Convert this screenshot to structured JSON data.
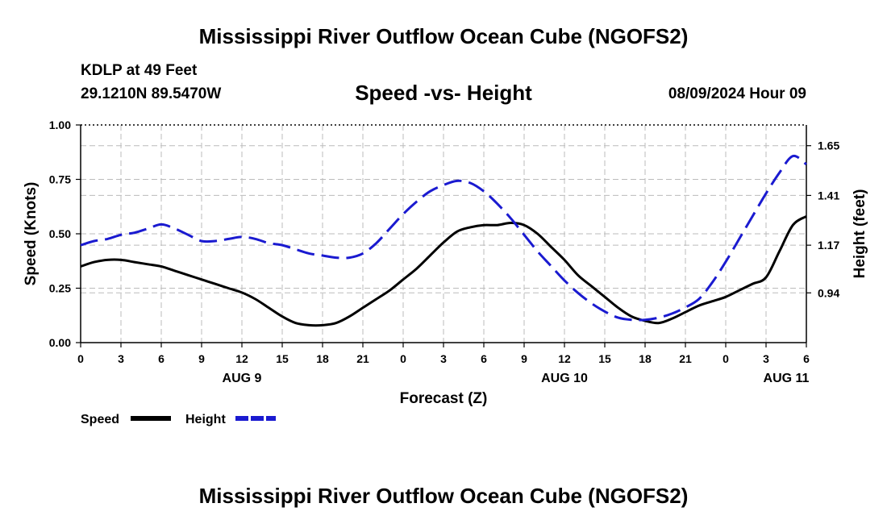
{
  "header": {
    "title": "Mississippi River Outflow Ocean Cube (NGOFS2)",
    "station_name": "KDLP at 49 Feet",
    "station_coords": "29.1210N  89.5470W",
    "chart_title": "Speed -vs- Height",
    "date": "08/09/2024 Hour 09"
  },
  "footer": {
    "title": "Mississippi River Outflow Ocean Cube (NGOFS2)"
  },
  "colors": {
    "speed": "#000000",
    "height": "#1a1ad0",
    "grid": "#bbbbbb"
  },
  "chart_data": {
    "type": "line",
    "title": "Speed -vs- Height",
    "xlabel": "Forecast (Z)",
    "ylabel": "Speed (Knots)",
    "ylabel_right": "Height (feet)",
    "xlim": [
      0,
      54
    ],
    "x_ticks": [
      0,
      3,
      6,
      9,
      12,
      15,
      18,
      21,
      24,
      27,
      30,
      33,
      36,
      39,
      42,
      45,
      48,
      51,
      54
    ],
    "x_tick_labels": [
      "0",
      "3",
      "6",
      "9",
      "12",
      "15",
      "18",
      "21",
      "0",
      "3",
      "6",
      "9",
      "12",
      "15",
      "18",
      "21",
      "0",
      "3",
      "6"
    ],
    "date_labels": [
      {
        "x": 12,
        "label": "AUG 9"
      },
      {
        "x": 36,
        "label": "AUG 10"
      },
      {
        "x": 52.5,
        "label": "AUG 11"
      }
    ],
    "ylim": [
      0,
      1
    ],
    "y_ticks": [
      0,
      0.25,
      0.5,
      0.75,
      1.0
    ],
    "y_tick_labels": [
      "0.00",
      "0.25",
      "0.50",
      "0.75",
      "1.00"
    ],
    "ylim_right": [
      0.7,
      1.75
    ],
    "y_ticks_right": [
      0.94,
      1.17,
      1.41,
      1.65
    ],
    "y_tick_labels_right": [
      "0.94",
      "1.17",
      "1.41",
      "1.65"
    ],
    "legend": [
      {
        "name": "Speed",
        "series": "speed"
      },
      {
        "name": "Height",
        "series": "height"
      }
    ],
    "series": [
      {
        "name": "Speed",
        "axis": "left",
        "style": "solid",
        "x": [
          0,
          1,
          2,
          3,
          4,
          5,
          6,
          7,
          8,
          9,
          10,
          11,
          12,
          13,
          14,
          15,
          16,
          17,
          18,
          19,
          20,
          21,
          22,
          23,
          24,
          25,
          26,
          27,
          28,
          29,
          30,
          31,
          32,
          33,
          34,
          35,
          36,
          37,
          38,
          39,
          40,
          41,
          42,
          43,
          44,
          45,
          46,
          47,
          48,
          49,
          50,
          51,
          52,
          53,
          54
        ],
        "values": [
          0.35,
          0.37,
          0.38,
          0.38,
          0.37,
          0.36,
          0.35,
          0.33,
          0.31,
          0.29,
          0.27,
          0.25,
          0.23,
          0.2,
          0.16,
          0.12,
          0.09,
          0.08,
          0.08,
          0.09,
          0.12,
          0.16,
          0.2,
          0.24,
          0.29,
          0.34,
          0.4,
          0.46,
          0.51,
          0.53,
          0.54,
          0.54,
          0.55,
          0.54,
          0.5,
          0.44,
          0.38,
          0.31,
          0.26,
          0.21,
          0.16,
          0.12,
          0.1,
          0.09,
          0.11,
          0.14,
          0.17,
          0.19,
          0.21,
          0.24,
          0.27,
          0.3,
          0.42,
          0.54,
          0.58
        ]
      },
      {
        "name": "Height",
        "axis": "right",
        "style": "dashed",
        "x": [
          0,
          1,
          2,
          3,
          4,
          5,
          6,
          7,
          8,
          9,
          10,
          11,
          12,
          13,
          14,
          15,
          16,
          17,
          18,
          19,
          20,
          21,
          22,
          23,
          24,
          25,
          26,
          27,
          28,
          29,
          30,
          31,
          32,
          33,
          34,
          35,
          36,
          37,
          38,
          39,
          40,
          41,
          42,
          43,
          44,
          45,
          46,
          47,
          48,
          49,
          50,
          51,
          52,
          53,
          54
        ],
        "values": [
          1.17,
          1.19,
          1.2,
          1.22,
          1.23,
          1.25,
          1.27,
          1.25,
          1.22,
          1.19,
          1.19,
          1.2,
          1.21,
          1.2,
          1.18,
          1.17,
          1.15,
          1.13,
          1.12,
          1.11,
          1.11,
          1.13,
          1.18,
          1.25,
          1.32,
          1.38,
          1.43,
          1.46,
          1.48,
          1.47,
          1.43,
          1.37,
          1.3,
          1.22,
          1.14,
          1.07,
          1.0,
          0.94,
          0.89,
          0.85,
          0.82,
          0.81,
          0.81,
          0.82,
          0.84,
          0.87,
          0.91,
          0.99,
          1.09,
          1.2,
          1.31,
          1.42,
          1.52,
          1.6,
          1.56
        ]
      }
    ]
  }
}
